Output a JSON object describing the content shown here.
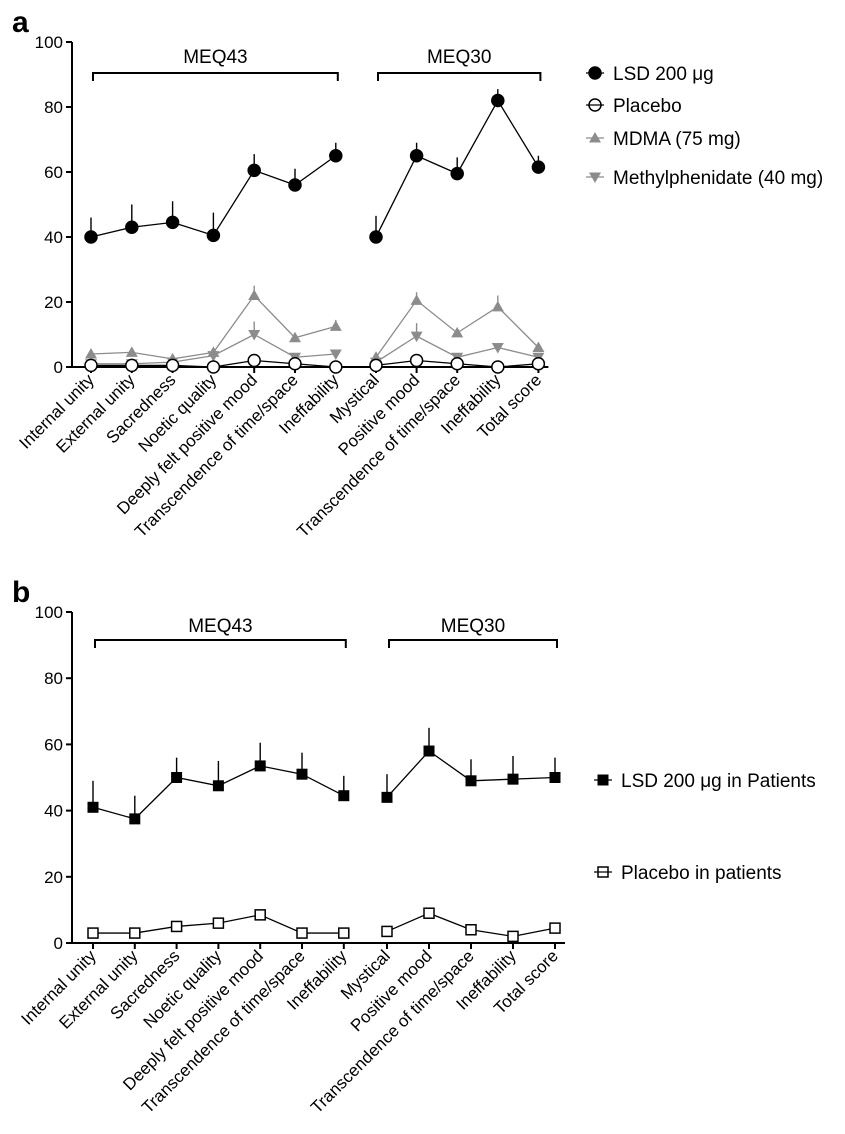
{
  "chart_data": [
    {
      "panel": "a",
      "type": "line",
      "ylim": [
        0,
        100
      ],
      "yticks": [
        "0",
        "20",
        "40",
        "60",
        "80",
        "100"
      ],
      "grid": false,
      "legend_position": "right",
      "groups": [
        {
          "label": "MEQ43",
          "categories": [
            "Internal unity",
            "External unity",
            "Sacredness",
            "Noetic quality",
            "Deeply felt positive mood",
            "Transcendence of time/space",
            "Ineffability"
          ]
        },
        {
          "label": "MEQ30",
          "categories": [
            "Mystical",
            "Positive mood",
            "Transcendence of time/space",
            "Ineffability",
            "Total score"
          ]
        }
      ],
      "series": [
        {
          "name": "LSD 200 μg",
          "marker": "filled-circle",
          "color": "#000000",
          "values": [
            40,
            43,
            44.5,
            40.5,
            60.5,
            56,
            65,
            40,
            65,
            59.5,
            82,
            61.5
          ],
          "errors": [
            6,
            7,
            6.5,
            7,
            5,
            5,
            4,
            6.5,
            4,
            5,
            3.5,
            3.5
          ]
        },
        {
          "name": "Placebo",
          "marker": "open-circle",
          "color": "#000000",
          "values": [
            0.5,
            0.5,
            0.5,
            0,
            2,
            1,
            0,
            0.5,
            2,
            1,
            0,
            1
          ],
          "errors": [
            0,
            0,
            0,
            0,
            0,
            0,
            0,
            0,
            0,
            0,
            0,
            0
          ]
        },
        {
          "name": "MDMA (75 mg)",
          "marker": "triangle-up",
          "color": "#8c8c8c",
          "values": [
            4,
            4.5,
            2.5,
            4.5,
            22,
            9,
            12.5,
            3,
            20.5,
            10.5,
            18.5,
            6
          ],
          "errors": [
            0,
            0,
            0,
            0,
            3,
            0,
            2,
            0,
            2.5,
            0,
            3.5,
            0
          ]
        },
        {
          "name": "Methylphenidate (40 mg)",
          "marker": "triangle-down",
          "color": "#8c8c8c",
          "values": [
            1,
            1,
            1.5,
            3.5,
            10,
            3,
            4,
            1.5,
            9.5,
            3,
            6,
            3
          ],
          "errors": [
            0,
            0,
            0,
            0,
            4,
            0,
            0,
            0,
            4,
            0,
            0,
            0
          ]
        }
      ]
    },
    {
      "panel": "b",
      "type": "line",
      "ylim": [
        0,
        100
      ],
      "yticks": [
        "0",
        "20",
        "40",
        "60",
        "80",
        "100"
      ],
      "grid": false,
      "legend_position": "right",
      "groups": [
        {
          "label": "MEQ43",
          "categories": [
            "Internal unity",
            "External unity",
            "Sacredness",
            "Noetic quality",
            "Deeply felt positive mood",
            "Transcendence of time/space",
            "Ineffability"
          ]
        },
        {
          "label": "MEQ30",
          "categories": [
            "Mystical",
            "Positive mood",
            "Transcendence of time/space",
            "Ineffability",
            "Total score"
          ]
        }
      ],
      "series": [
        {
          "name": "LSD 200 μg in Patients",
          "marker": "filled-square",
          "color": "#000000",
          "values": [
            41,
            37.5,
            50,
            47.5,
            53.5,
            51,
            44.5,
            44,
            58,
            49,
            49.5,
            50
          ],
          "errors": [
            8,
            7,
            6,
            7.5,
            7,
            6.5,
            6,
            7,
            7,
            6.5,
            7,
            6
          ]
        },
        {
          "name": "Placebo in patients",
          "marker": "open-square",
          "color": "#000000",
          "values": [
            3,
            3,
            5,
            6,
            8.5,
            3,
            3,
            3.5,
            9,
            4,
            2,
            4.5
          ],
          "errors": [
            0,
            0,
            0,
            0,
            0,
            0,
            0,
            0,
            0,
            0,
            0,
            0
          ]
        }
      ]
    }
  ]
}
